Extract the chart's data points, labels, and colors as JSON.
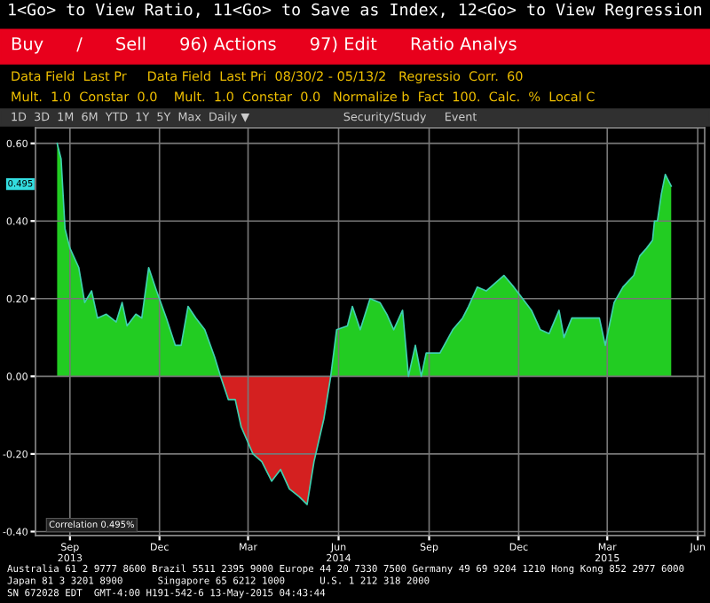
{
  "chart_data": {
    "type": "area",
    "title": "1<Go> to View Ratio, 11<Go> to Save as Index, 12<Go> to View Regression",
    "x": [
      "2013-08-19",
      "2013-08-23",
      "2013-08-27",
      "2013-09-01",
      "2013-09-10",
      "2013-09-16",
      "2013-09-23",
      "2013-09-29",
      "2013-10-08",
      "2013-10-18",
      "2013-10-24",
      "2013-10-29",
      "2013-11-07",
      "2013-11-13",
      "2013-11-20",
      "2013-11-28",
      "2013-12-08",
      "2013-12-17",
      "2013-12-23",
      "2013-12-30",
      "2014-01-07",
      "2014-01-16",
      "2014-01-26",
      "2014-02-01",
      "2014-02-09",
      "2014-02-16",
      "2014-02-22",
      "2014-03-06",
      "2014-03-15",
      "2014-03-25",
      "2014-04-03",
      "2014-04-12",
      "2014-04-22",
      "2014-04-30",
      "2014-05-07",
      "2014-05-17",
      "2014-05-24",
      "2014-05-30",
      "2014-06-10",
      "2014-06-15",
      "2014-06-23",
      "2014-07-03",
      "2014-07-13",
      "2014-07-20",
      "2014-07-27",
      "2014-08-05",
      "2014-08-11",
      "2014-08-18",
      "2014-08-24",
      "2014-08-29",
      "2014-09-12",
      "2014-09-25",
      "2014-10-05",
      "2014-10-11",
      "2014-10-20",
      "2014-10-29",
      "2014-11-07",
      "2014-11-16",
      "2014-11-26",
      "2014-12-05",
      "2014-12-14",
      "2014-12-23",
      "2015-01-01",
      "2015-01-11",
      "2015-01-16",
      "2015-01-24",
      "2015-02-08",
      "2015-02-21",
      "2015-02-27",
      "2015-03-08",
      "2015-03-17",
      "2015-03-28",
      "2015-04-03",
      "2015-04-10",
      "2015-04-16",
      "2015-04-18",
      "2015-04-21",
      "2015-04-25",
      "2015-04-29",
      "2015-05-01",
      "2015-05-05"
    ],
    "series": [
      {
        "color": "#22cc22",
        "values": [
          0.6,
          0.56,
          0.38,
          0.33,
          0.28,
          0.19,
          0.22,
          0.15,
          0.16,
          0.14,
          0.19,
          0.13,
          0.16,
          0.15,
          0.28,
          0.22,
          0.15,
          0.08,
          0.08,
          0.18,
          0.15,
          0.12,
          0.05,
          0.0,
          null,
          null,
          null,
          null,
          null,
          null,
          null,
          null,
          null,
          null,
          null,
          null,
          0.0,
          0.12,
          0.13,
          0.18,
          0.12,
          0.2,
          0.19,
          0.16,
          0.12,
          0.17,
          0.0,
          0.08,
          0.0,
          0.06,
          0.06,
          0.12,
          0.15,
          0.18,
          0.23,
          0.22,
          0.24,
          0.26,
          0.23,
          0.2,
          0.17,
          0.12,
          0.11,
          0.17,
          0.1,
          0.15,
          0.15,
          0.15,
          0.08,
          0.19,
          0.23,
          0.26,
          0.31,
          0.33,
          0.35,
          0.4,
          0.4,
          0.47,
          0.52,
          0.51,
          0.49
        ]
      },
      {
        "color": "#d42020",
        "values": [
          null,
          null,
          null,
          null,
          null,
          null,
          null,
          null,
          null,
          null,
          null,
          null,
          null,
          null,
          null,
          null,
          null,
          null,
          null,
          null,
          null,
          null,
          null,
          0.0,
          -0.06,
          -0.06,
          -0.13,
          -0.2,
          -0.22,
          -0.27,
          -0.24,
          -0.29,
          -0.31,
          -0.33,
          -0.22,
          -0.11,
          0.0,
          null,
          null,
          null,
          null,
          null,
          null,
          null,
          null,
          null,
          null,
          null,
          null,
          null,
          null,
          null,
          null,
          null,
          null,
          null,
          null,
          null,
          null,
          null,
          null,
          null,
          null,
          null,
          null,
          null,
          null,
          null,
          null,
          null,
          null,
          null,
          null,
          null,
          null,
          null,
          null,
          null,
          null,
          null,
          null
        ]
      }
    ],
    "xlim": [
      "2013-07-28",
      "2015-06-08"
    ],
    "xticks": [
      {
        "value": "2013-09-01",
        "label": "Sep\n2013"
      },
      {
        "value": "2013-12-01",
        "label": "Dec"
      },
      {
        "value": "2014-03-01",
        "label": "Mar"
      },
      {
        "value": "2014-06-01",
        "label": "Jun\n2014"
      },
      {
        "value": "2014-09-01",
        "label": "Sep"
      },
      {
        "value": "2014-12-01",
        "label": "Dec"
      },
      {
        "value": "2015-03-01",
        "label": "Mar\n2015"
      },
      {
        "value": "2015-06-01",
        "label": "Jun"
      }
    ],
    "ylim": [
      -0.41,
      0.64
    ],
    "yticks": [
      {
        "value": 0.6,
        "label": "0.60"
      },
      {
        "value": 0.4,
        "label": "0.40"
      },
      {
        "value": 0.2,
        "label": "0.20"
      },
      {
        "value": 0.0,
        "label": "0.00"
      },
      {
        "value": -0.2,
        "label": "-0.20"
      },
      {
        "value": -0.4,
        "label": "-0.40"
      }
    ],
    "grid": true,
    "annotations": [
      "Buy      /      Sell      96) Actions      97) Edit      Ratio Analys",
      "Data Field  Last Pr     Data Field  Last Pri  08/30/2 - 05/13/2   Regressio  Corr.  60",
      "Mult.  1.0  Constar  0.0    Mult.  1.0  Constar  0.0   Normalize b  Fact  100.  Calc.  %  Local C",
      "1D  3D  1M  6M  YTD  1Y  5Y  Max  Daily ▼                          Security/Study     Event",
      "Correlation 0.495%",
      {
        "text": "0.495",
        "y": 0.495
      },
      "Australia 61 2 9777 8600 Brazil 5511 2395 9000 Europe 44 20 7330 7500 Germany 49 69 9204 1210 Hong Kong 852 2977 6000",
      "Japan 81 3 3201 8900      Singapore 65 6212 1000      U.S. 1 212 318 2000",
      "SN 672028 EDT  GMT-4:00 H191-542-6 13-May-2015 04:43:44"
    ]
  }
}
